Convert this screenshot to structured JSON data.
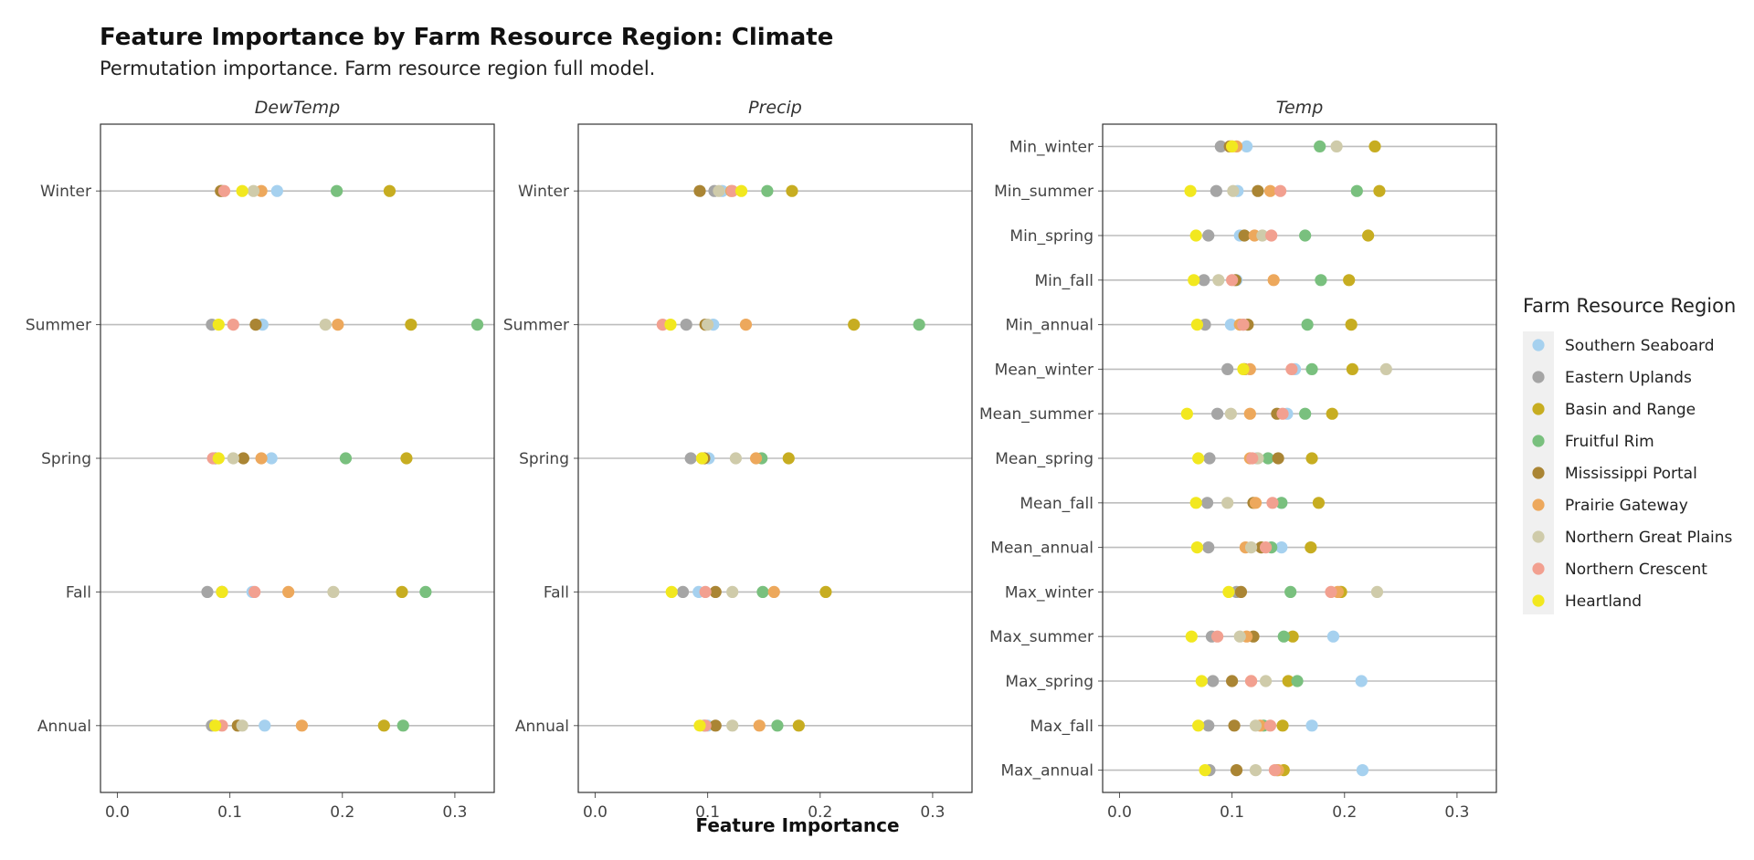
{
  "chart_data": {
    "type": "scatter",
    "title": "Feature Importance by Farm Resource Region: Climate",
    "subtitle": "Permutation importance. Farm resource region full model.",
    "xlabel": "Feature Importance",
    "xlim": [
      -0.015,
      0.335
    ],
    "xticks": [
      "0.0",
      "0.1",
      "0.2",
      "0.3"
    ],
    "xtick_values": [
      0,
      0.1,
      0.2,
      0.3
    ],
    "grid": "horizontal lines at each category",
    "legend": {
      "title": "Farm Resource Region",
      "placement": "right",
      "regions": [
        {
          "name": "Southern Seaboard",
          "color": "#a6d1ef"
        },
        {
          "name": "Eastern Uplands",
          "color": "#a5a5a5"
        },
        {
          "name": "Basin and Range",
          "color": "#c7ad21"
        },
        {
          "name": "Fruitful Rim",
          "color": "#79c07e"
        },
        {
          "name": "Mississippi Portal",
          "color": "#aa8534"
        },
        {
          "name": "Prairie Gateway",
          "color": "#eda85c"
        },
        {
          "name": "Northern Great Plains",
          "color": "#cfcbaa"
        },
        {
          "name": "Northern Crescent",
          "color": "#f2a090"
        },
        {
          "name": "Heartland",
          "color": "#f2e81f"
        }
      ]
    },
    "panels": [
      {
        "strip": "DewTemp",
        "categories": [
          "Winter",
          "Summer",
          "Spring",
          "Fall",
          "Annual"
        ],
        "values": [
          [
            0.142,
            0.093,
            0.242,
            0.195,
            0.092,
            0.128,
            0.121,
            0.095,
            0.111
          ],
          [
            0.129,
            0.084,
            0.261,
            0.32,
            0.123,
            0.196,
            0.185,
            0.103,
            0.09
          ],
          [
            0.137,
            0.087,
            0.257,
            0.203,
            0.112,
            0.128,
            0.103,
            0.085,
            0.09
          ],
          [
            0.12,
            0.08,
            0.253,
            0.274,
            0.093,
            0.152,
            0.192,
            0.122,
            0.093
          ],
          [
            0.131,
            0.084,
            0.237,
            0.254,
            0.107,
            0.164,
            0.111,
            0.093,
            0.087
          ]
        ]
      },
      {
        "strip": "Precip",
        "categories": [
          "Winter",
          "Summer",
          "Spring",
          "Fall",
          "Annual"
        ],
        "values": [
          [
            0.113,
            0.106,
            0.175,
            0.153,
            0.093,
            0.121,
            0.11,
            0.122,
            0.13
          ],
          [
            0.105,
            0.081,
            0.23,
            0.288,
            0.098,
            0.134,
            0.1,
            0.06,
            0.067
          ],
          [
            0.101,
            0.085,
            0.172,
            0.148,
            0.097,
            0.143,
            0.125,
            0.095,
            0.095
          ],
          [
            0.092,
            0.078,
            0.205,
            0.149,
            0.107,
            0.159,
            0.122,
            0.098,
            0.068
          ],
          [
            0.1,
            0.097,
            0.181,
            0.162,
            0.107,
            0.146,
            0.122,
            0.098,
            0.093
          ]
        ]
      },
      {
        "strip": "Temp",
        "categories": [
          "Min_winter",
          "Min_summer",
          "Min_spring",
          "Min_fall",
          "Min_annual",
          "Mean_winter",
          "Mean_summer",
          "Mean_spring",
          "Mean_fall",
          "Mean_annual",
          "Max_winter",
          "Max_summer",
          "Max_spring",
          "Max_fall",
          "Max_annual"
        ],
        "values": [
          [
            0.113,
            0.09,
            0.227,
            0.178,
            0.098,
            0.104,
            0.193,
            0.1,
            0.1
          ],
          [
            0.105,
            0.086,
            0.231,
            0.211,
            0.123,
            0.134,
            0.101,
            0.143,
            0.063
          ],
          [
            0.107,
            0.079,
            0.221,
            0.165,
            0.111,
            0.12,
            0.127,
            0.135,
            0.068
          ],
          [
            0.104,
            0.075,
            0.204,
            0.179,
            0.103,
            0.137,
            0.088,
            0.1,
            0.066
          ],
          [
            0.099,
            0.076,
            0.206,
            0.167,
            0.114,
            0.107,
            0.11,
            0.11,
            0.069
          ],
          [
            0.156,
            0.096,
            0.207,
            0.171,
            0.111,
            0.116,
            0.237,
            0.153,
            0.11
          ],
          [
            0.149,
            0.087,
            0.189,
            0.165,
            0.14,
            0.116,
            0.099,
            0.145,
            0.06
          ],
          [
            0.122,
            0.08,
            0.171,
            0.132,
            0.141,
            0.116,
            0.123,
            0.118,
            0.07
          ],
          [
            0.144,
            0.078,
            0.177,
            0.144,
            0.119,
            0.121,
            0.096,
            0.136,
            0.068
          ],
          [
            0.144,
            0.079,
            0.17,
            0.135,
            0.126,
            0.112,
            0.117,
            0.13,
            0.069
          ],
          [
            0.196,
            0.104,
            0.197,
            0.152,
            0.108,
            0.194,
            0.229,
            0.188,
            0.097
          ],
          [
            0.19,
            0.082,
            0.154,
            0.146,
            0.119,
            0.113,
            0.107,
            0.087,
            0.064
          ],
          [
            0.215,
            0.083,
            0.15,
            0.158,
            0.1,
            0.117,
            0.13,
            0.117,
            0.073
          ],
          [
            0.171,
            0.079,
            0.145,
            0.128,
            0.102,
            0.125,
            0.121,
            0.134,
            0.07
          ],
          [
            0.216,
            0.08,
            0.146,
            0.14,
            0.104,
            0.141,
            0.121,
            0.138,
            0.076
          ]
        ]
      }
    ]
  }
}
